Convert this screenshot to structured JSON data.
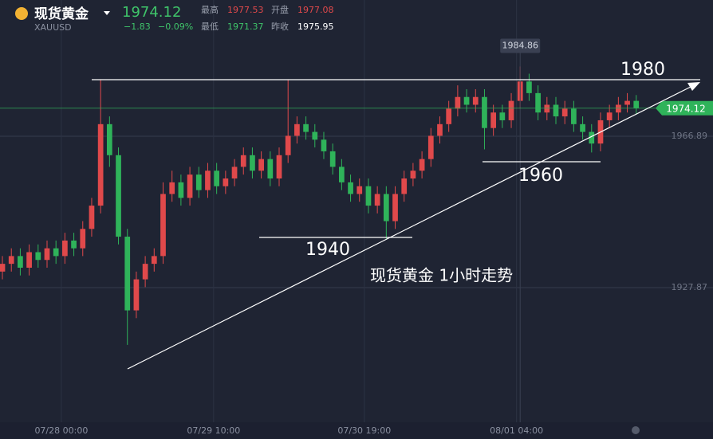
{
  "header": {
    "title": "现货黄金",
    "symbol": "XAUUSD",
    "change": "−1.83",
    "change_pct": "−0.09%",
    "high_label": "最高",
    "high": "1977.53",
    "open_label": "开盘",
    "open": "1977.08",
    "low_label": "最低",
    "low": "1971.37",
    "prev_label": "昨收",
    "prev": "1975.95"
  },
  "chart_data": {
    "type": "candlestick",
    "up_color": "#e0494b",
    "down_color": "#2fb35a",
    "ylim": [
      1893.16,
      2002.0
    ],
    "yticks": [
      1966.89,
      1927.87
    ],
    "xlim": [
      -0.27,
      79.6
    ],
    "xticks": [
      {
        "value": 6.6,
        "label": "07/28 00:00"
      },
      {
        "value": 23.66,
        "label": "07/29 10:00"
      },
      {
        "value": 40.54,
        "label": "07/30 19:00"
      },
      {
        "value": 57.59,
        "label": "08/01 04:00"
      }
    ],
    "open": [
      1932,
      1934,
      1936,
      1933,
      1937,
      1935,
      1938,
      1936,
      1940,
      1938,
      1943,
      1949,
      1970,
      1962,
      1941,
      1922,
      1930,
      1934,
      1936,
      1952,
      1955,
      1951,
      1957,
      1953,
      1958,
      1954,
      1956,
      1959,
      1962,
      1958,
      1961,
      1956,
      1962,
      1967,
      1970,
      1968,
      1966,
      1963,
      1959,
      1955,
      1952,
      1954,
      1949,
      1952,
      1945,
      1952,
      1956,
      1958,
      1961,
      1967,
      1970,
      1974,
      1977,
      1975,
      1977,
      1969,
      1973,
      1971,
      1976,
      1981,
      1978,
      1973,
      1975,
      1972,
      1974,
      1970,
      1968,
      1965,
      1971,
      1973,
      1975,
      1976
    ],
    "high": [
      1936,
      1938,
      1938,
      1939,
      1939,
      1940,
      1940,
      1942,
      1942,
      1945,
      1951,
      1981.5,
      1972,
      1964,
      1943,
      1932,
      1936,
      1938,
      1955,
      1958,
      1957,
      1959,
      1959,
      1960,
      1960,
      1958,
      1961,
      1964,
      1964,
      1963,
      1963,
      1964,
      1981.4,
      1972,
      1972,
      1970,
      1968,
      1965,
      1961,
      1957,
      1956,
      1956,
      1954,
      1954,
      1954,
      1958,
      1960,
      1963,
      1969,
      1972,
      1976,
      1980,
      1979,
      1979,
      1979,
      1975,
      1975,
      1978,
      1984.86,
      1983,
      1980,
      1977,
      1977,
      1976,
      1976,
      1972,
      1970,
      1973,
      1975,
      1977,
      1978,
      1977.5
    ],
    "low": [
      1930,
      1932,
      1931,
      1931,
      1933,
      1933,
      1934,
      1934,
      1936,
      1936,
      1941,
      1947,
      1959,
      1939,
      1913.1,
      1920,
      1928,
      1932,
      1934,
      1950,
      1949,
      1949,
      1951,
      1951,
      1952,
      1952,
      1954,
      1957,
      1956,
      1956,
      1954,
      1954,
      1960,
      1965,
      1966,
      1964,
      1961,
      1957,
      1953,
      1950,
      1950,
      1947,
      1947,
      1940.4,
      1943,
      1950,
      1954,
      1956,
      1959,
      1965,
      1968,
      1972,
      1973,
      1973,
      1963.5,
      1967,
      1969,
      1969,
      1974,
      1976,
      1971,
      1971,
      1970,
      1970,
      1968,
      1966,
      1962.7,
      1963,
      1969,
      1971,
      1973,
      1972.5
    ],
    "close": [
      1934,
      1936,
      1933,
      1937,
      1935,
      1938,
      1936,
      1940,
      1938,
      1943,
      1949,
      1970,
      1962,
      1941,
      1922,
      1930,
      1934,
      1936,
      1952,
      1955,
      1951,
      1957,
      1953,
      1958,
      1954,
      1956,
      1959,
      1962,
      1958,
      1961,
      1956,
      1962,
      1967,
      1970,
      1968,
      1966,
      1963,
      1959,
      1955,
      1952,
      1954,
      1949,
      1952,
      1945,
      1952,
      1956,
      1958,
      1961,
      1967,
      1970,
      1974,
      1977,
      1975,
      1977,
      1969,
      1973,
      1971,
      1976,
      1981,
      1978,
      1973,
      1975,
      1972,
      1974,
      1970,
      1968,
      1965,
      1971,
      1973,
      1975,
      1976,
      1974.12
    ],
    "annotations": [
      "1980",
      "1960",
      "1940",
      "现货黄金 1小时走势"
    ]
  }
}
